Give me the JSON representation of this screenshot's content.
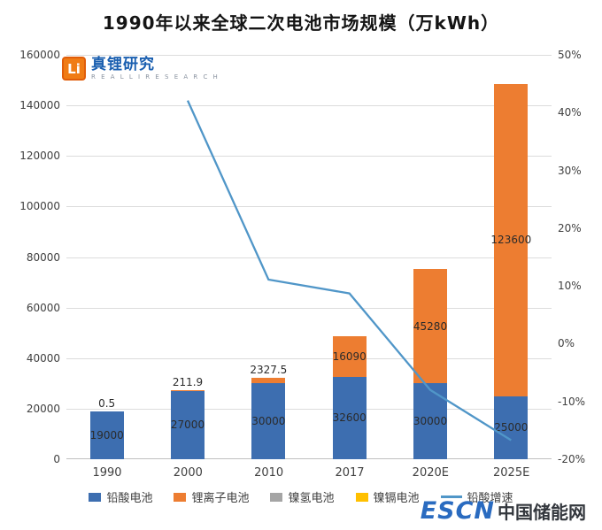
{
  "logo": {
    "icon_text": "Li",
    "name": "真锂研究",
    "subtext": "R E A L L I   R E S E A R C H"
  },
  "watermark": {
    "escn": "ESCN",
    "site": "中国储能网"
  },
  "colors": {
    "lead_acid": "#3d6eb0",
    "li_ion": "#ed7d31",
    "nimh": "#a5a5a5",
    "nicd": "#ffc000",
    "growth_line": "#5096c8",
    "grid": "#dcdcdc",
    "axis_text": "#404040"
  },
  "chart_data": {
    "type": "bar",
    "subtype": "stacked-bar-with-line",
    "title": "1990年以来全球二次电池市场规模（万kWh）",
    "categories": [
      "1990",
      "2000",
      "2010",
      "2017",
      "2020E",
      "2025E"
    ],
    "series": [
      {
        "name": "铅酸电池",
        "type": "bar",
        "color_key": "lead_acid",
        "values": [
          19000,
          27000,
          30000,
          32600,
          30000,
          25000
        ],
        "labels": [
          "19000",
          "27000",
          "30000",
          "32600",
          "30000",
          "25000"
        ]
      },
      {
        "name": "锂离子电池",
        "type": "bar",
        "color_key": "li_ion",
        "values": [
          0.5,
          211.9,
          2327.5,
          16090,
          45280,
          123600
        ],
        "labels": [
          "0.5",
          "211.9",
          "2327.5",
          "16090",
          "45280",
          "123600"
        ]
      },
      {
        "name": "镍氢电池",
        "type": "bar",
        "color_key": "nimh",
        "values": [
          0,
          0,
          0,
          0,
          0,
          0
        ],
        "labels": [
          "",
          "",
          "",
          "",
          "",
          ""
        ]
      },
      {
        "name": "镍镉电池",
        "type": "bar",
        "color_key": "nicd",
        "values": [
          0,
          0,
          0,
          0,
          0,
          0
        ],
        "labels": [
          "",
          "",
          "",
          "",
          "",
          ""
        ]
      },
      {
        "name": "铅酸增速",
        "type": "line",
        "color_key": "growth_line",
        "values": [
          null,
          42.1,
          11.1,
          8.7,
          -8.0,
          -16.7
        ]
      }
    ],
    "left_axis": {
      "min": 0,
      "max": 160000,
      "step": 20000,
      "tick_labels": [
        "0",
        "20000",
        "40000",
        "60000",
        "80000",
        "100000",
        "120000",
        "140000",
        "160000"
      ]
    },
    "right_axis": {
      "min": -20,
      "max": 50,
      "step": 10,
      "tick_labels": [
        "-20%",
        "-10%",
        "0%",
        "10%",
        "20%",
        "30%",
        "40%",
        "50%"
      ]
    },
    "grid": true,
    "legend_position": "bottom",
    "legend": [
      {
        "label": "铅酸电池",
        "marker": "square",
        "color_key": "lead_acid"
      },
      {
        "label": "锂离子电池",
        "marker": "square",
        "color_key": "li_ion"
      },
      {
        "label": "镍氢电池",
        "marker": "square",
        "color_key": "nimh"
      },
      {
        "label": "镍镉电池",
        "marker": "square",
        "color_key": "nicd"
      },
      {
        "label": "铅酸增速",
        "marker": "line",
        "color_key": "growth_line"
      }
    ]
  }
}
